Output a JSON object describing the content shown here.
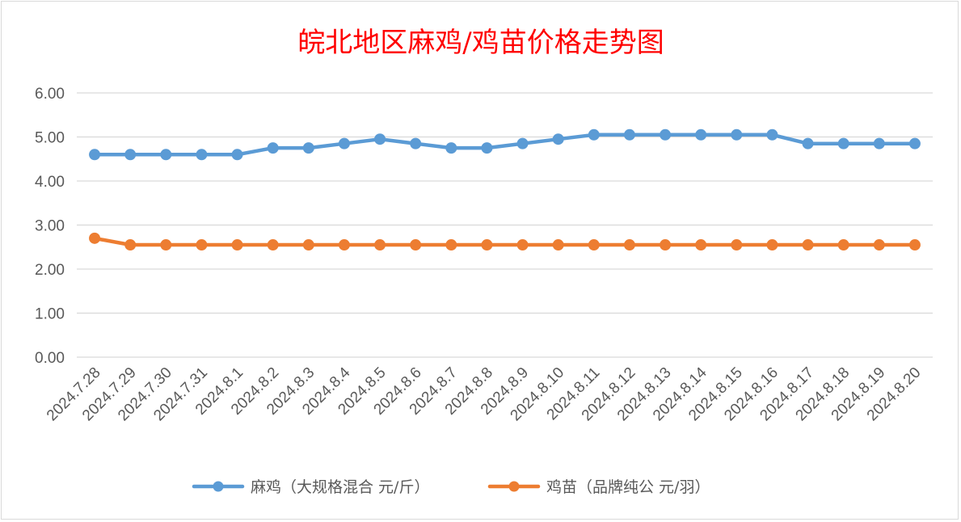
{
  "colors": {
    "series_1": "#5b9bd5",
    "series_2": "#ed7d31",
    "title": "#ff0000",
    "gridline": "#d9d9d9",
    "tick_text": "#595959"
  },
  "chart_data": {
    "type": "line",
    "title": "皖北地区麻鸡/鸡苗价格走势图",
    "xlabel": "",
    "ylabel": "",
    "ylim": [
      0,
      6
    ],
    "yticks": [
      "0.00",
      "1.00",
      "2.00",
      "3.00",
      "4.00",
      "5.00",
      "6.00"
    ],
    "ytick_values": [
      0,
      1,
      2,
      3,
      4,
      5,
      6
    ],
    "grid": true,
    "legend_position": "bottom",
    "categories": [
      "2024.7.28",
      "2024.7.29",
      "2024.7.30",
      "2024.7.31",
      "2024.8.1",
      "2024.8.2",
      "2024.8.3",
      "2024.8.4",
      "2024.8.5",
      "2024.8.6",
      "2024.8.7",
      "2024.8.8",
      "2024.8.9",
      "2024.8.10",
      "2024.8.11",
      "2024.8.12",
      "2024.8.13",
      "2024.8.14",
      "2024.8.15",
      "2024.8.16",
      "2024.8.17",
      "2024.8.18",
      "2024.8.19",
      "2024.8.20"
    ],
    "series": [
      {
        "name": "麻鸡（大规格混合 元/斤）",
        "color": "#5b9bd5",
        "values": [
          4.6,
          4.6,
          4.6,
          4.6,
          4.6,
          4.75,
          4.75,
          4.85,
          4.95,
          4.85,
          4.75,
          4.75,
          4.85,
          4.95,
          5.05,
          5.05,
          5.05,
          5.05,
          5.05,
          5.05,
          4.85,
          4.85,
          4.85,
          4.85
        ]
      },
      {
        "name": "鸡苗（品牌纯公 元/羽）",
        "color": "#ed7d31",
        "values": [
          2.7,
          2.55,
          2.55,
          2.55,
          2.55,
          2.55,
          2.55,
          2.55,
          2.55,
          2.55,
          2.55,
          2.55,
          2.55,
          2.55,
          2.55,
          2.55,
          2.55,
          2.55,
          2.55,
          2.55,
          2.55,
          2.55,
          2.55,
          2.55
        ]
      }
    ]
  }
}
